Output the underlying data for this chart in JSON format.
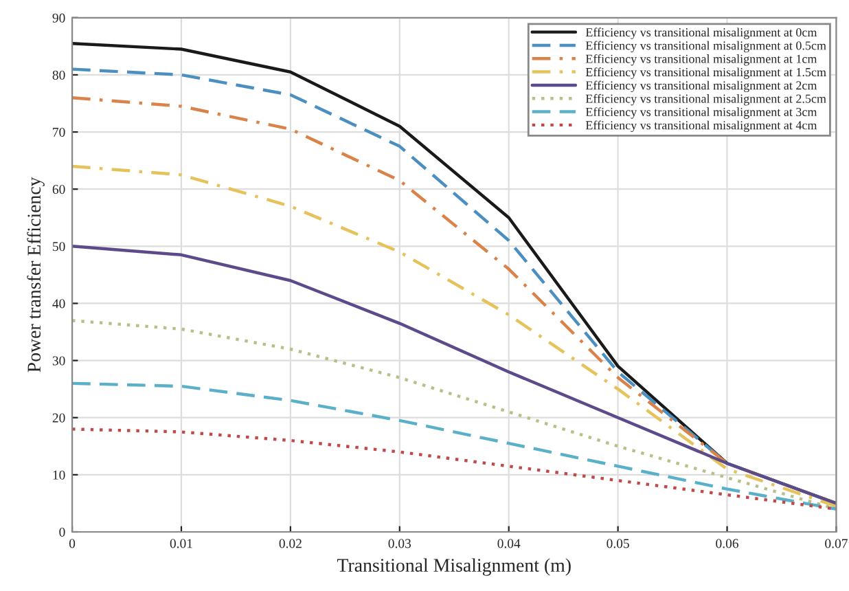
{
  "chart_data": {
    "type": "line",
    "xlabel": "Transitional Misalignment (m)",
    "ylabel": "Power transfer Efficiency",
    "x": [
      0,
      0.01,
      0.02,
      0.03,
      0.04,
      0.05,
      0.06,
      0.07
    ],
    "series": [
      {
        "name": "Efficiency vs transitional misalignment at 0cm",
        "color": "#1a1a1a",
        "line_style": "solid",
        "values": [
          85.5,
          84.5,
          80.5,
          71,
          55,
          29,
          12,
          5
        ]
      },
      {
        "name": "Efficiency vs transitional misalignment at 0.5cm",
        "color": "#4a8fc0",
        "line_style": "dashed",
        "values": [
          81,
          80,
          76.5,
          67.5,
          51,
          28,
          12,
          5
        ]
      },
      {
        "name": "Efficiency vs transitional misalignment at 1cm",
        "color": "#d9834a",
        "line_style": "dashdot",
        "values": [
          76,
          74.5,
          70.5,
          61.5,
          46,
          27,
          12,
          5
        ]
      },
      {
        "name": "Efficiency vs transitional misalignment at 1.5cm",
        "color": "#e6c25a",
        "line_style": "dashdot",
        "values": [
          64,
          62.5,
          57,
          49,
          38,
          25,
          11,
          4.5
        ]
      },
      {
        "name": "Efficiency vs transitional misalignment at 2cm",
        "color": "#5d4a8a",
        "line_style": "solid",
        "values": [
          50,
          48.5,
          44,
          36.5,
          28,
          20,
          12,
          5
        ]
      },
      {
        "name": "Efficiency vs transitional misalignment at 2.5cm",
        "color": "#b8c08a",
        "line_style": "dotted",
        "values": [
          37,
          35.5,
          32,
          27,
          21,
          15,
          9.5,
          4
        ]
      },
      {
        "name": "Efficiency vs transitional misalignment at 3cm",
        "color": "#5ab0c8",
        "line_style": "dashed",
        "values": [
          26,
          25.5,
          23,
          19.5,
          15.5,
          11.5,
          7.5,
          4
        ]
      },
      {
        "name": "Efficiency vs transitional misalignment at 4cm",
        "color": "#c04a4a",
        "line_style": "dotted",
        "values": [
          18,
          17.5,
          16,
          14,
          11.5,
          9,
          6.5,
          4
        ]
      }
    ],
    "xlim": [
      0,
      0.07
    ],
    "xticks": [
      0,
      0.01,
      0.02,
      0.03,
      0.04,
      0.05,
      0.06,
      0.07
    ],
    "ylim": [
      0,
      90
    ],
    "yticks": [
      0,
      10,
      20,
      30,
      40,
      50,
      60,
      70,
      80,
      90
    ],
    "grid": true,
    "legend": "top right",
    "marker": "none"
  }
}
